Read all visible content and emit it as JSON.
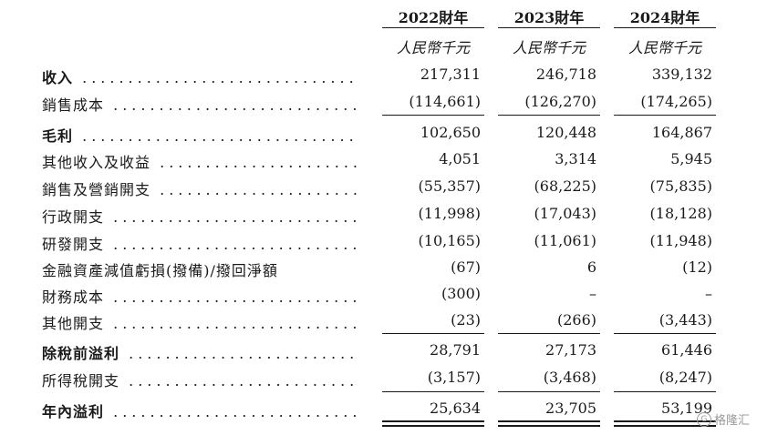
{
  "columns": [
    {
      "year": "2022財年",
      "unit": "人民幣千元"
    },
    {
      "year": "2023財年",
      "unit": "人民幣千元"
    },
    {
      "year": "2024財年",
      "unit": "人民幣千元"
    }
  ],
  "rows": [
    {
      "label": "收入",
      "bold": true,
      "values": [
        "217,311",
        "246,718",
        "339,132"
      ]
    },
    {
      "label": "銷售成本",
      "bold": false,
      "values": [
        "(114,661)",
        "(126,270)",
        "(174,265)"
      ]
    },
    {
      "label": "毛利",
      "bold": true,
      "values": [
        "102,650",
        "120,448",
        "164,867"
      ]
    },
    {
      "label": "其他收入及收益",
      "bold": false,
      "values": [
        "4,051",
        "3,314",
        "5,945"
      ]
    },
    {
      "label": "銷售及營銷開支",
      "bold": false,
      "values": [
        "(55,357)",
        "(68,225)",
        "(75,835)"
      ]
    },
    {
      "label": "行政開支",
      "bold": false,
      "values": [
        "(11,998)",
        "(17,043)",
        "(18,128)"
      ]
    },
    {
      "label": "研發開支",
      "bold": false,
      "values": [
        "(10,165)",
        "(11,061)",
        "(11,948)"
      ]
    },
    {
      "label": "金融資產減值虧損(撥備)/撥回淨額",
      "bold": false,
      "values": [
        "(67)",
        "6",
        "(12)"
      ]
    },
    {
      "label": "財務成本",
      "bold": false,
      "values": [
        "(300)",
        "–",
        "–"
      ]
    },
    {
      "label": "其他開支",
      "bold": false,
      "values": [
        "(23)",
        "(266)",
        "(3,443)"
      ]
    },
    {
      "label": "除稅前溢利",
      "bold": true,
      "values": [
        "28,791",
        "27,173",
        "61,446"
      ]
    },
    {
      "label": "所得稅開支",
      "bold": false,
      "values": [
        "(3,157)",
        "(3,468)",
        "(8,247)"
      ]
    },
    {
      "label": "年內溢利",
      "bold": true,
      "values": [
        "25,634",
        "23,705",
        "53,199"
      ]
    }
  ],
  "watermark": {
    "icon": "gelonghui-logo-icon",
    "text": "格隆汇"
  }
}
